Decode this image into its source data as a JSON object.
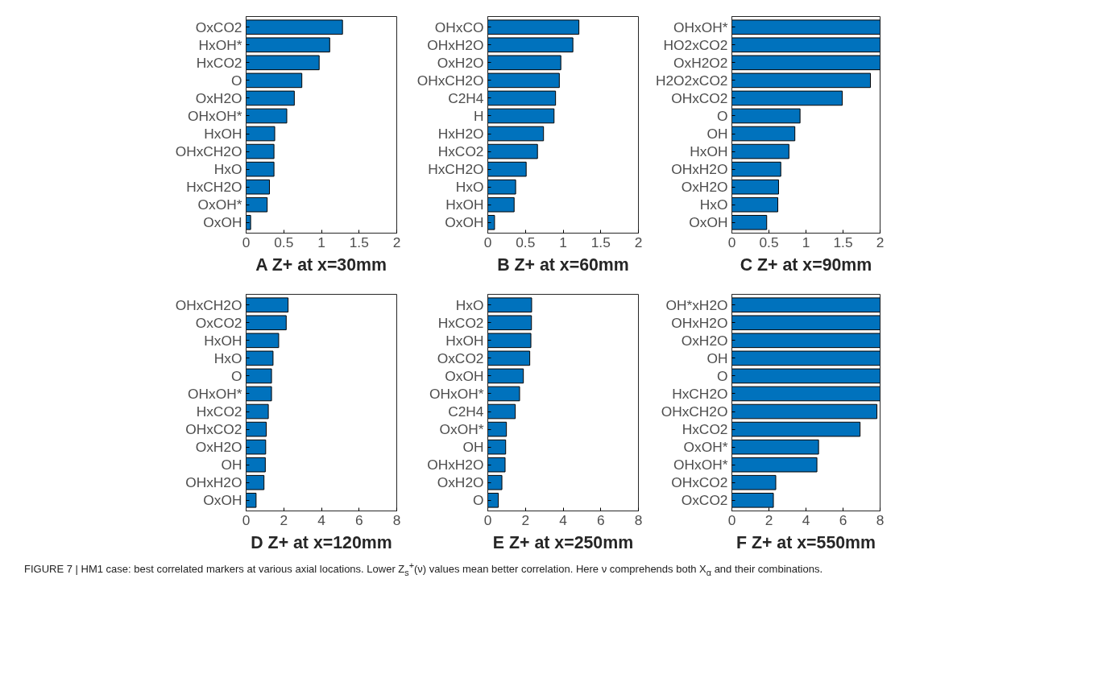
{
  "chart_data": [
    {
      "type": "bar",
      "orientation": "horizontal",
      "title": "A Z+ at x=30mm",
      "categories": [
        "OxCO2",
        "HxOH*",
        "HxCO2",
        "O",
        "OxH2O",
        "OHxOH*",
        "HxOH",
        "OHxCH2O",
        "HxO",
        "HxCH2O",
        "OxOH*",
        "OxOH"
      ],
      "values": [
        1.28,
        1.11,
        0.97,
        0.74,
        0.64,
        0.54,
        0.38,
        0.37,
        0.37,
        0.31,
        0.28,
        0.06
      ],
      "color": "#0072bd",
      "xlim": [
        0,
        2
      ],
      "xticks": [
        0,
        0.5,
        1,
        1.5,
        2
      ]
    },
    {
      "type": "bar",
      "orientation": "horizontal",
      "title": "B Z+ at x=60mm",
      "categories": [
        "OHxCO",
        "OHxH2O",
        "OxH2O",
        "OHxCH2O",
        "C2H4",
        "H",
        "HxH2O",
        "HxCO2",
        "HxCH2O",
        "HxO",
        "HxOH",
        "OxOH"
      ],
      "values": [
        1.21,
        1.13,
        0.97,
        0.95,
        0.9,
        0.88,
        0.74,
        0.66,
        0.51,
        0.37,
        0.35,
        0.09
      ],
      "color": "#0072bd",
      "xlim": [
        0,
        2
      ],
      "xticks": [
        0,
        0.5,
        1,
        1.5,
        2
      ]
    },
    {
      "type": "bar",
      "orientation": "horizontal",
      "title": "C Z+ at x=90mm",
      "categories": [
        "OHxOH*",
        "HO2xCO2",
        "OxH2O2",
        "H2O2xCO2",
        "OHxCO2",
        "O",
        "OH",
        "HxOH",
        "OHxH2O",
        "OxH2O",
        "HxO",
        "OxOH"
      ],
      "values": [
        2,
        2,
        2,
        1.87,
        1.49,
        0.92,
        0.85,
        0.77,
        0.66,
        0.63,
        0.62,
        0.47
      ],
      "color": "#0072bd",
      "xlim": [
        0,
        2
      ],
      "xticks": [
        0,
        0.5,
        1,
        1.5,
        2
      ]
    },
    {
      "type": "bar",
      "orientation": "horizontal",
      "title": "D Z+ at x=120mm",
      "categories": [
        "OHxCH2O",
        "OxCO2",
        "HxOH",
        "HxO",
        "O",
        "OHxOH*",
        "HxCO2",
        "OHxCO2",
        "OxH2O",
        "OH",
        "OHxH2O",
        "OxOH"
      ],
      "values": [
        2.23,
        2.13,
        1.73,
        1.43,
        1.35,
        1.35,
        1.18,
        1.07,
        1.04,
        1.02,
        0.95,
        0.53
      ],
      "color": "#0072bd",
      "xlim": [
        0,
        8
      ],
      "xticks": [
        0,
        2,
        4,
        6,
        8
      ]
    },
    {
      "type": "bar",
      "orientation": "horizontal",
      "title": "E Z+ at x=250mm",
      "categories": [
        "HxO",
        "HxCO2",
        "HxOH",
        "OxCO2",
        "OxOH",
        "OHxOH*",
        "C2H4",
        "OxOH*",
        "OH",
        "OHxH2O",
        "OxH2O",
        "O"
      ],
      "values": [
        2.33,
        2.32,
        2.29,
        2.23,
        1.89,
        1.69,
        1.46,
        0.99,
        0.95,
        0.92,
        0.75,
        0.56
      ],
      "color": "#0072bd",
      "xlim": [
        0,
        8
      ],
      "xticks": [
        0,
        2,
        4,
        6,
        8
      ]
    },
    {
      "type": "bar",
      "orientation": "horizontal",
      "title": "F Z+ at x=550mm",
      "categories": [
        "OH*xH2O",
        "OHxH2O",
        "OxH2O",
        "OH",
        "O",
        "HxCH2O",
        "OHxCH2O",
        "HxCO2",
        "OxOH*",
        "OHxOH*",
        "OHxCO2",
        "OxCO2"
      ],
      "values": [
        8,
        8,
        8,
        8,
        8,
        8,
        7.83,
        6.92,
        4.68,
        4.59,
        2.37,
        2.24
      ],
      "color": "#0072bd",
      "xlim": [
        0,
        8
      ],
      "xticks": [
        0,
        2,
        4,
        6,
        8
      ],
      "annotations": [
        "FIGURE 7 | HM1 case: best correlated markers at various axial locations. Lower Z$_{s}$$^{+}$(ν) values mean better correlation. Here ν comprehends both X$_{α}$ and their combinations."
      ]
    }
  ]
}
